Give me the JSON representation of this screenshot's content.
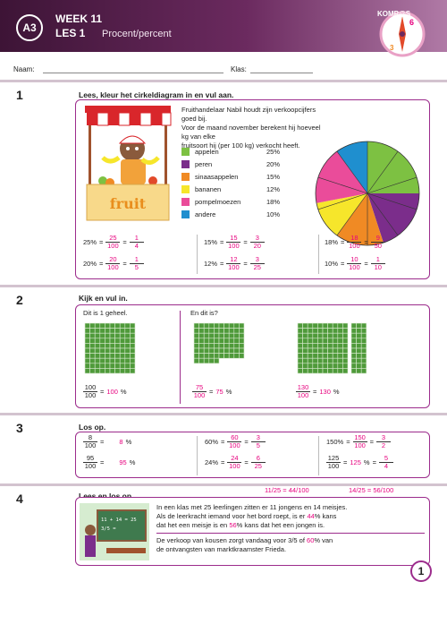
{
  "header": {
    "badge": "A3",
    "week": "WEEK 11",
    "les": "LES 1",
    "title": "Procent/percent",
    "logo": "KOMP@S"
  },
  "form": {
    "naam": "Naam:",
    "klas": "Klas:"
  },
  "ex1": {
    "num": "1",
    "instr": "Lees, kleur het cirkeldiagram in en vul aan.",
    "story": [
      "Fruithandelaar Nabil houdt zijn verkoopcijfers goed bij.",
      "Voor de maand november berekent hij hoeveel kg van elke",
      "fruitsoort hij (per 100 kg) verkocht heeft."
    ],
    "sign": "fruit",
    "legend": [
      {
        "label": "appelen",
        "pct": "25%",
        "color": "#7dc142"
      },
      {
        "label": "peren",
        "pct": "20%",
        "color": "#7b2d8b"
      },
      {
        "label": "sinaasappelen",
        "pct": "15%",
        "color": "#f08a24"
      },
      {
        "label": "bananen",
        "pct": "12%",
        "color": "#f6e62b"
      },
      {
        "label": "pompelmoezen",
        "pct": "18%",
        "color": "#ea4c9a"
      },
      {
        "label": "andere",
        "pct": "10%",
        "color": "#1f8fcf"
      }
    ],
    "equations": [
      {
        "p": "25%",
        "n1": "25",
        "d1": "100",
        "n2": "1",
        "d2": "4"
      },
      {
        "p": "20%",
        "n1": "20",
        "d1": "100",
        "n2": "1",
        "d2": "5"
      },
      {
        "p": "15%",
        "n1": "15",
        "d1": "100",
        "n2": "3",
        "d2": "20"
      },
      {
        "p": "12%",
        "n1": "12",
        "d1": "100",
        "n2": "3",
        "d2": "25"
      },
      {
        "p": "18%",
        "n1": "18",
        "d1": "100",
        "n2": "9",
        "d2": "50"
      },
      {
        "p": "10%",
        "n1": "10",
        "d1": "100",
        "n2": "1",
        "d2": "10"
      }
    ]
  },
  "chart_data": {
    "type": "pie",
    "categories": [
      "appelen",
      "peren",
      "sinaasappelen",
      "bananen",
      "pompelmoezen",
      "andere"
    ],
    "values": [
      25,
      20,
      15,
      12,
      18,
      10
    ],
    "title": "",
    "xlabel": "",
    "ylabel": ""
  },
  "ex2": {
    "num": "2",
    "instr": "Kijk en vul in.",
    "left_label": "Dit is 1 geheel.",
    "right_label": "En dit is?",
    "answers": [
      {
        "n": "100",
        "d": "100",
        "ans": "100",
        "unit": "%"
      },
      {
        "n": "75",
        "d": "100",
        "ans": "75",
        "unit": "%"
      },
      {
        "n": "130",
        "d": "100",
        "ans": "130",
        "unit": "%"
      }
    ]
  },
  "ex3": {
    "num": "3",
    "instr": "Los op.",
    "col1": [
      {
        "n": "8",
        "d": "100",
        "ans": "8",
        "unit": "%"
      },
      {
        "n": "95",
        "d": "100",
        "ans": "95",
        "unit": "%"
      }
    ],
    "col2": [
      {
        "p": "60%",
        "n1": "60",
        "d1": "100",
        "n2": "3",
        "d2": "5"
      },
      {
        "p": "24%",
        "n1": "24",
        "d1": "100",
        "n2": "6",
        "d2": "25"
      }
    ],
    "col3": [
      {
        "p": "150%",
        "n1": "150",
        "d1": "100",
        "n2": "3",
        "d2": "2"
      },
      {
        "n": "125",
        "d": "100",
        "ans": "125",
        "n2": "5",
        "d2": "4"
      }
    ]
  },
  "ex4": {
    "num": "4",
    "instr": "Lees en los op.",
    "note1": "11/25 = 44/100",
    "note2": "14/25 = 56/100",
    "s1": "In een klas met 25 leerlingen zitten er 11 jongens en 14 meisjes.",
    "s2a": "Als de leerkracht iemand voor het bord roept, is er",
    "s2ans": "44",
    "s2b": "% kans",
    "s3a": "dat het een meisje is en",
    "s3ans": "56",
    "s3b": "% kans dat het een jongen is.",
    "s4a": "De verkoop van kousen zorgt vandaag voor 3/5 of",
    "s4ans": "60",
    "s4b": "% van",
    "s5": "de ontvangsten van marktkraamster Frieda.",
    "board1": "11 + 14 = 25",
    "board2": "3/5 ="
  },
  "page_number": "1"
}
